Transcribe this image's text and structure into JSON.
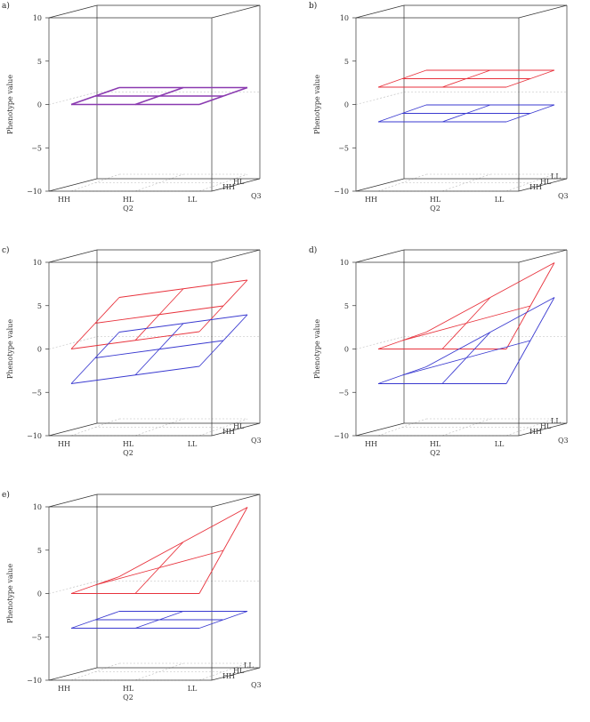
{
  "figure": {
    "axis_labels": {
      "y": "Phenotype value",
      "q2": "Q2",
      "q3": "Q3"
    },
    "genotypes": [
      "HH",
      "HL",
      "LL"
    ],
    "z_ticks": [
      "10",
      "5",
      "0",
      "−10"
    ],
    "z_ticks_full": [
      "10",
      "5",
      "0",
      "−5",
      "−10"
    ],
    "colors": {
      "group1": "#e8323c",
      "group2": "#3a3ad0",
      "overlap": "#8a3ab0",
      "frame": "#333333",
      "grid": "#bbbbbb"
    }
  },
  "chart_data": [
    {
      "label": "a)",
      "type": "3d-surface",
      "zlim": [
        -10,
        10
      ],
      "q3_ticks": [
        "HH",
        "HL"
      ],
      "surfaces": [
        {
          "color": "overlap",
          "z": [
            [
              0,
              0,
              0
            ],
            [
              0,
              0,
              0
            ],
            [
              0,
              0,
              0
            ]
          ]
        }
      ]
    },
    {
      "label": "b)",
      "type": "3d-surface",
      "zlim": [
        -10,
        10
      ],
      "q3_ticks": [
        "HH",
        "HL",
        "LL"
      ],
      "surfaces": [
        {
          "color": "group1",
          "z": [
            [
              2,
              2,
              2
            ],
            [
              2,
              2,
              2
            ],
            [
              2,
              2,
              2
            ]
          ]
        },
        {
          "color": "group2",
          "z": [
            [
              -2,
              -2,
              -2
            ],
            [
              -2,
              -2,
              -2
            ],
            [
              -2,
              -2,
              -2
            ]
          ]
        }
      ]
    },
    {
      "label": "c)",
      "type": "3d-surface",
      "zlim": [
        -10,
        10
      ],
      "q3_ticks": [
        "HH",
        "HL"
      ],
      "surfaces": [
        {
          "color": "group1",
          "z": [
            [
              0,
              2,
              4
            ],
            [
              1,
              3,
              5
            ],
            [
              2,
              4,
              6
            ]
          ]
        },
        {
          "color": "group2",
          "z": [
            [
              -4,
              -2,
              0
            ],
            [
              -3,
              -1,
              1
            ],
            [
              -2,
              0,
              2
            ]
          ]
        }
      ]
    },
    {
      "label": "d)",
      "type": "3d-surface",
      "zlim": [
        -10,
        10
      ],
      "q3_ticks": [
        "HH",
        "HL",
        "LL"
      ],
      "surfaces": [
        {
          "color": "group1",
          "z": [
            [
              0,
              0,
              0
            ],
            [
              0,
              2,
              4
            ],
            [
              0,
              4,
              8
            ]
          ]
        },
        {
          "color": "group2",
          "z": [
            [
              -4,
              -4,
              -4
            ],
            [
              -4,
              -2,
              0
            ],
            [
              -4,
              0,
              4
            ]
          ]
        }
      ]
    },
    {
      "label": "e)",
      "type": "3d-surface",
      "zlim": [
        -10,
        10
      ],
      "q3_ticks": [
        "HH",
        "HL",
        "LL"
      ],
      "surfaces": [
        {
          "color": "group1",
          "z": [
            [
              0,
              0,
              0
            ],
            [
              0,
              2,
              4
            ],
            [
              0,
              4,
              8
            ]
          ]
        },
        {
          "color": "group2",
          "z": [
            [
              -4,
              -4,
              -4
            ],
            [
              -4,
              -4,
              -4
            ],
            [
              -4,
              -4,
              -4
            ]
          ]
        }
      ]
    }
  ]
}
